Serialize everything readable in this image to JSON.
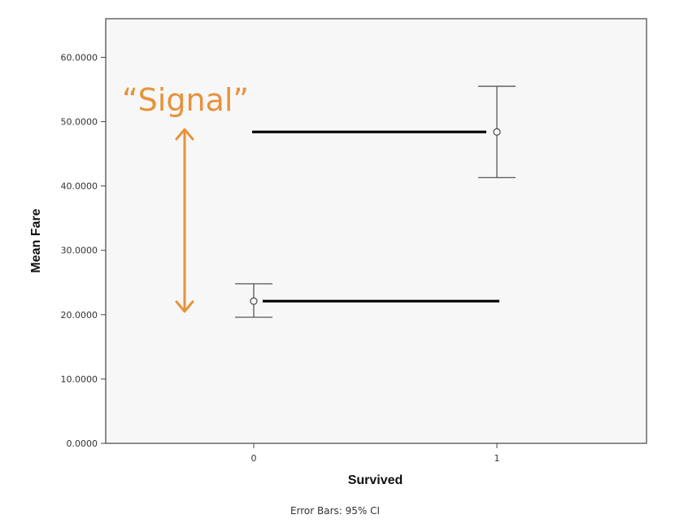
{
  "chart_data": {
    "type": "scatter",
    "xlabel": "Survived",
    "ylabel": "Mean Fare",
    "footnote": "Error Bars: 95% CI",
    "categories": [
      "0",
      "1"
    ],
    "y_ticks": [
      "0.0000",
      "10.0000",
      "20.0000",
      "30.0000",
      "40.0000",
      "50.0000",
      "60.0000"
    ],
    "ylim": [
      0,
      66
    ],
    "points": [
      {
        "x": "0",
        "mean": 22.1,
        "ci_low": 19.6,
        "ci_high": 24.8
      },
      {
        "x": "1",
        "mean": 48.4,
        "ci_low": 41.3,
        "ci_high": 55.5
      }
    ],
    "grid": false,
    "annotation": {
      "text": "“Signal”",
      "color": "#E8923A",
      "arrow_from": 20.5,
      "arrow_to": 48.8
    },
    "reference_lines": [
      {
        "y": 48.4,
        "x_from": "0",
        "x_to": "1"
      },
      {
        "y": 22.1,
        "x_from": "0",
        "x_to": "1"
      }
    ]
  },
  "colors": {
    "plot_bg": "#F7F7F7",
    "axis": "#444444",
    "marker": "#555555",
    "reference_line": "#000000",
    "annotation": "#E8923A"
  }
}
